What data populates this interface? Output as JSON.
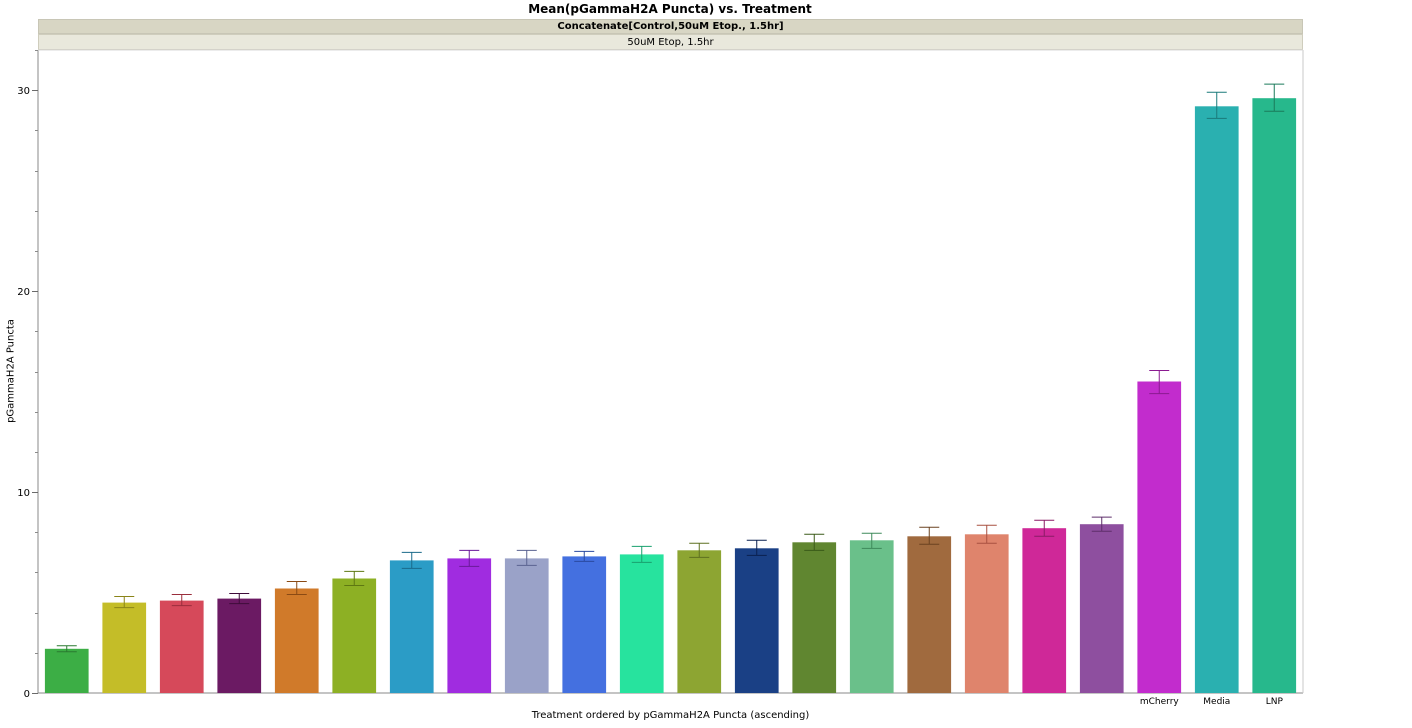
{
  "chart_data": {
    "type": "bar",
    "title": "Mean(pGammaH2A Puncta) vs. Treatment",
    "group_header": "Concatenate[Control,50uM Etop., 1.5hr]",
    "group_value": "50uM Etop, 1.5hr",
    "xlabel": "Treatment ordered by pGammaH2A Puncta (ascending)",
    "ylabel": "pGammaH2A Puncta",
    "ylim": [
      0,
      32
    ],
    "yticks": [
      "0",
      "10",
      "20",
      "30"
    ],
    "ytick_values": [
      0,
      10,
      20,
      30
    ],
    "categories": [
      "",
      "",
      "",
      "",
      "",
      "",
      "",
      "",
      "",
      "",
      "",
      "",
      "",
      "",
      "",
      "",
      "",
      "",
      "",
      "mCherry",
      "Media",
      "LNP"
    ],
    "values": [
      2.2,
      4.5,
      4.6,
      4.7,
      5.2,
      5.7,
      6.6,
      6.7,
      6.7,
      6.8,
      6.9,
      7.1,
      7.2,
      7.5,
      7.6,
      7.8,
      7.9,
      8.2,
      8.4,
      15.5,
      29.2,
      29.6
    ],
    "error_low": [
      2.05,
      4.25,
      4.35,
      4.45,
      4.9,
      5.35,
      6.2,
      6.3,
      6.35,
      6.55,
      6.5,
      6.75,
      6.85,
      7.1,
      7.2,
      7.4,
      7.45,
      7.8,
      8.05,
      14.9,
      28.6,
      28.95
    ],
    "error_high": [
      2.35,
      4.8,
      4.9,
      4.95,
      5.55,
      6.05,
      7.0,
      7.1,
      7.1,
      7.05,
      7.3,
      7.45,
      7.6,
      7.9,
      7.95,
      8.25,
      8.35,
      8.6,
      8.75,
      16.05,
      29.9,
      30.3
    ],
    "colors": [
      "#3cae45",
      "#c4bd28",
      "#d6495a",
      "#6b1a63",
      "#d07a2a",
      "#8db024",
      "#2b9cc6",
      "#a02ce0",
      "#9aa2c8",
      "#4470e0",
      "#27e39e",
      "#8da532",
      "#1a4085",
      "#608630",
      "#6ac08a",
      "#a06a3e",
      "#df846c",
      "#cf2898",
      "#8e4f9f",
      "#c22ccd",
      "#2ab0b0",
      "#27b88c"
    ],
    "error_colors": [
      "#2a7a30",
      "#8a8418",
      "#9a2e3c",
      "#3e0c3a",
      "#8a4a14",
      "#5e7812",
      "#1a6a8a",
      "#6a1a9a",
      "#5a6290",
      "#2a4aa0",
      "#18a06e",
      "#5e7020",
      "#0a2050",
      "#3a5a18",
      "#3e8a5a",
      "#6a4220",
      "#a85040",
      "#8a1a66",
      "#5e2e6a",
      "#8a1a90",
      "#1a7a7a",
      "#1a7a5a"
    ],
    "grid": false,
    "legend": "none"
  }
}
